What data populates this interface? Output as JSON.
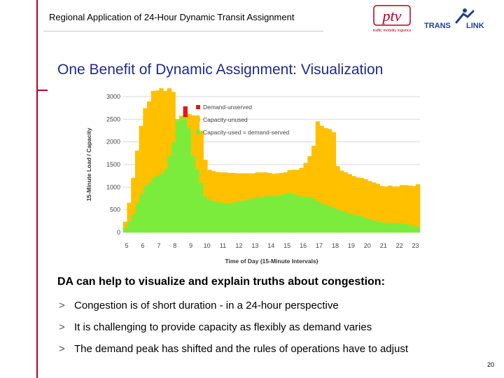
{
  "header": {
    "title": "Regional Application of 24-Hour Dynamic Transit  Assignment",
    "logo_ptv": "ptv",
    "logo_ptv_tagline": "traffic mobility logistics",
    "logo_translink_left": "TRANS",
    "logo_translink_right": "LINK"
  },
  "slide_title": "One Benefit of Dynamic Assignment: Visualization",
  "chart_data": {
    "type": "area",
    "xlabel": "Time of Day (15-Minute Intervals)",
    "ylabel": "15-Minute Load / Capacity",
    "ylim": [
      0,
      3000
    ],
    "yticks": [
      "0",
      "500",
      "1000",
      "1500",
      "2000",
      "2500",
      "3000"
    ],
    "xticks": [
      "5",
      "6",
      "7",
      "8",
      "9",
      "10",
      "11",
      "12",
      "13",
      "14",
      "15",
      "16",
      "17",
      "18",
      "19",
      "20",
      "21",
      "22",
      "23"
    ],
    "grid": true,
    "legend_position": "top-right",
    "x": [
      "5:00",
      "5:15",
      "5:30",
      "5:45",
      "6:00",
      "6:15",
      "6:30",
      "6:45",
      "7:00",
      "7:15",
      "7:30",
      "7:45",
      "8:00",
      "8:15",
      "8:30",
      "8:45",
      "9:00",
      "9:15",
      "9:30",
      "9:45",
      "10:00",
      "10:15",
      "10:30",
      "10:45",
      "11:00",
      "11:15",
      "11:30",
      "11:45",
      "12:00",
      "12:15",
      "12:30",
      "12:45",
      "13:00",
      "13:15",
      "13:30",
      "13:45",
      "14:00",
      "14:15",
      "14:30",
      "14:45",
      "15:00",
      "15:15",
      "15:30",
      "15:45",
      "16:00",
      "16:15",
      "16:30",
      "16:45",
      "17:00",
      "17:15",
      "17:30",
      "17:45",
      "18:00",
      "18:15",
      "18:30",
      "18:45",
      "19:00",
      "19:15",
      "19:30",
      "19:45",
      "20:00",
      "20:15",
      "20:30",
      "20:45",
      "21:00",
      "21:15",
      "21:30",
      "21:45",
      "22:00",
      "22:15",
      "22:30",
      "22:45",
      "23:00",
      "23:15"
    ],
    "series": [
      {
        "name": "Demand-unserved",
        "color": "#e41a1a",
        "values": [
          0,
          0,
          0,
          0,
          0,
          0,
          0,
          0,
          0,
          0,
          0,
          0,
          0,
          0,
          0,
          230,
          0,
          0,
          0,
          0,
          0,
          0,
          0,
          0,
          0,
          0,
          0,
          0,
          0,
          0,
          0,
          0,
          0,
          0,
          0,
          0,
          0,
          0,
          0,
          0,
          0,
          0,
          0,
          0,
          0,
          0,
          0,
          0,
          0,
          0,
          0,
          0,
          0,
          0,
          0,
          0,
          0,
          0,
          0,
          0,
          0,
          0,
          0,
          0,
          0,
          0,
          0,
          0,
          0,
          0,
          0,
          0,
          0,
          0
        ]
      },
      {
        "name": "Capacity-unused",
        "color": "#ffc000",
        "values": [
          130,
          400,
          800,
          1150,
          1500,
          1720,
          1790,
          1920,
          1880,
          1900,
          1720,
          1480,
          1100,
          30,
          20,
          30,
          310,
          880,
          1180,
          1140,
          800,
          650,
          650,
          650,
          660,
          670,
          660,
          650,
          620,
          600,
          580,
          560,
          540,
          540,
          530,
          520,
          500,
          480,
          490,
          480,
          460,
          490,
          520,
          560,
          620,
          740,
          900,
          1150,
          1750,
          1700,
          1680,
          1700,
          1650,
          940,
          880,
          860,
          860,
          840,
          830,
          840,
          840,
          830,
          830,
          820,
          790,
          790,
          810,
          800,
          800,
          840,
          850,
          860,
          880,
          930
        ]
      },
      {
        "name": "Capacity-used = demand-served",
        "color": "#7cec3c",
        "values": [
          100,
          250,
          400,
          650,
          850,
          1020,
          1100,
          1200,
          1250,
          1300,
          1400,
          1700,
          2000,
          2470,
          2550,
          2520,
          2300,
          1700,
          1400,
          1100,
          800,
          730,
          700,
          680,
          660,
          650,
          650,
          660,
          680,
          700,
          720,
          740,
          760,
          780,
          790,
          800,
          810,
          810,
          810,
          830,
          860,
          880,
          860,
          820,
          800,
          790,
          780,
          760,
          700,
          650,
          620,
          580,
          560,
          520,
          480,
          460,
          420,
          400,
          380,
          360,
          330,
          300,
          270,
          250,
          230,
          220,
          220,
          210,
          210,
          200,
          190,
          170,
          140,
          130
        ]
      }
    ]
  },
  "subheading": "DA can help to visualize and explain truths about congestion:",
  "bullets": [
    "Congestion is of short duration - in a 24-hour perspective",
    "It is challenging to provide capacity as flexibly as demand varies",
    "The demand peak has shifted and the rules of operations have to adjust"
  ],
  "bullet_marker": ">",
  "page_number": "20"
}
